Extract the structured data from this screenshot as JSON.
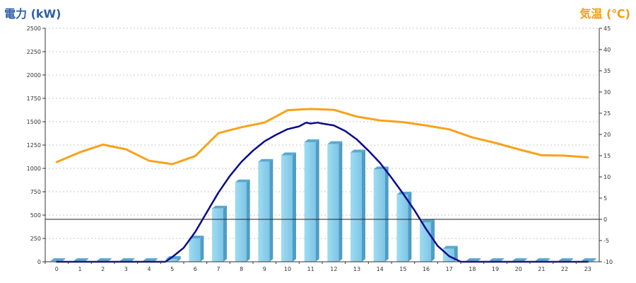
{
  "chart_data": {
    "type": "bar",
    "left_title": "電力 (kW)",
    "right_title": "気温 (℃)",
    "categories": [
      "0",
      "1",
      "2",
      "3",
      "4",
      "5",
      "6",
      "7",
      "8",
      "9",
      "10",
      "11",
      "12",
      "13",
      "14",
      "15",
      "16",
      "17",
      "18",
      "19",
      "20",
      "21",
      "22",
      "23"
    ],
    "y_left_ticks": [
      "0",
      "250",
      "500",
      "750",
      "1000",
      "1250",
      "1500",
      "1750",
      "2000",
      "2250",
      "2500"
    ],
    "y_right_ticks": [
      "-10",
      "-5",
      "0",
      "5",
      "10",
      "15",
      "20",
      "25",
      "30",
      "35",
      "40",
      "45"
    ],
    "ylim_left": [
      0,
      2500
    ],
    "ylim_right": [
      -10,
      45
    ],
    "grid": true,
    "series": [
      {
        "type": "bar",
        "axis": "left",
        "color": "#87ceeb",
        "values": [
          8,
          8,
          8,
          8,
          8,
          30,
          250,
          570,
          850,
          1070,
          1140,
          1280,
          1260,
          1170,
          990,
          720,
          420,
          140,
          8,
          8,
          8,
          8,
          8,
          8
        ]
      },
      {
        "type": "line",
        "axis": "left",
        "color": "#0a0a8c",
        "x": [
          0,
          1,
          2,
          3,
          4,
          4.7,
          5,
          5.5,
          6,
          6.5,
          7,
          7.5,
          8,
          8.5,
          9,
          9.5,
          10,
          10.5,
          10.8,
          11,
          11.3,
          11.5,
          12,
          12.5,
          13,
          13.5,
          14,
          14.5,
          15,
          15.5,
          16,
          16.5,
          17,
          17.5,
          18,
          19,
          20,
          21,
          22,
          23
        ],
        "values": [
          0,
          0,
          0,
          0,
          0,
          0,
          50,
          150,
          320,
          530,
          740,
          920,
          1070,
          1190,
          1290,
          1360,
          1420,
          1450,
          1490,
          1480,
          1490,
          1480,
          1460,
          1400,
          1310,
          1190,
          1060,
          900,
          730,
          550,
          350,
          170,
          60,
          0,
          0,
          0,
          0,
          0,
          0,
          0
        ]
      },
      {
        "type": "line",
        "axis": "right",
        "color": "#f7a21b",
        "values": [
          13.5,
          15.8,
          17.6,
          16.5,
          13.8,
          13.0,
          14.9,
          20.3,
          21.7,
          22.8,
          25.7,
          26.0,
          25.8,
          24.2,
          23.3,
          22.9,
          22.1,
          21.2,
          19.3,
          18.0,
          16.5,
          15.1,
          15.0,
          14.6
        ]
      }
    ]
  }
}
